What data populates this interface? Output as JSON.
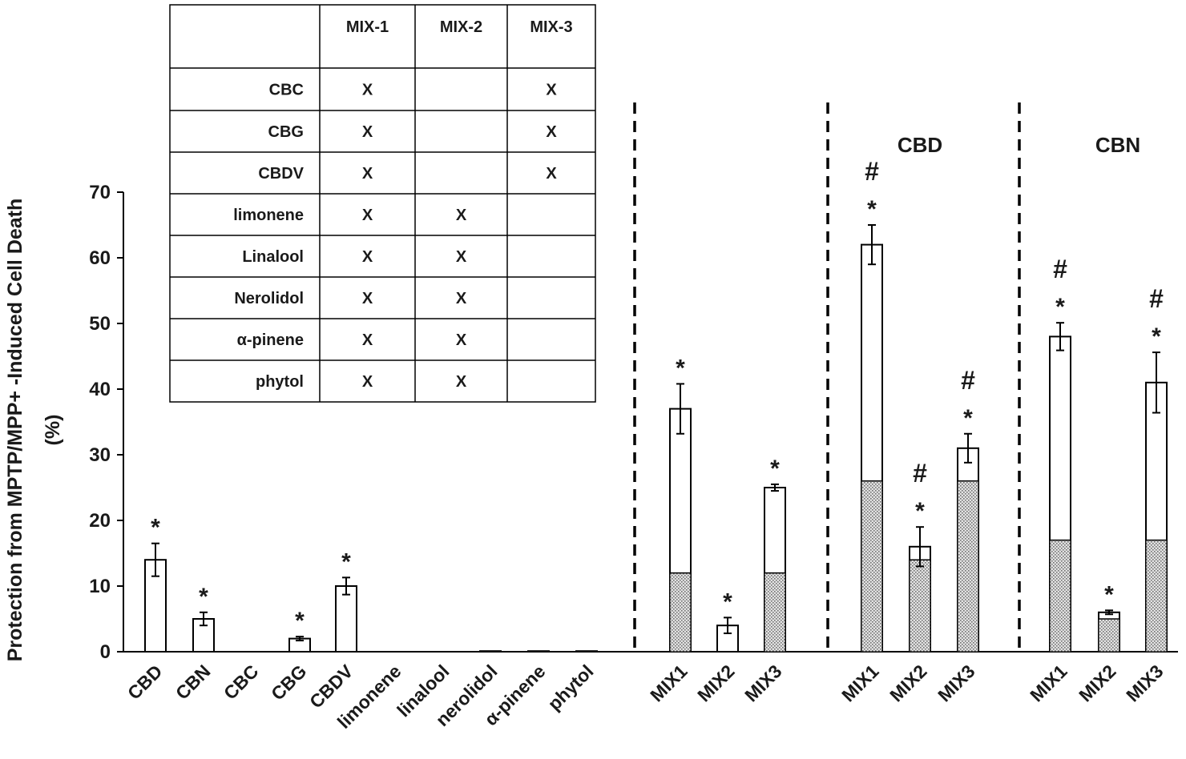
{
  "chart_data": {
    "type": "bar",
    "stacked": true,
    "ylabel": "Protection from MPTP/MPP+ -Induced Cell Death",
    "ylabel_unit": "(%)",
    "ylim": [
      0,
      70
    ],
    "yticks": [
      "0",
      "10",
      "20",
      "30",
      "40",
      "50",
      "60",
      "70"
    ],
    "categories": [
      "CBD",
      "CBN",
      "CBC",
      "CBG",
      "CBDV",
      "limonene",
      "linalool",
      "nerolidol",
      "α-pinene",
      "phytol",
      "MIX1",
      "MIX2",
      "MIX3",
      "MIX1",
      "MIX2",
      "MIX3",
      "MIX1",
      "MIX2",
      "MIX3"
    ],
    "series": [
      {
        "name": "base (hatched)",
        "values": [
          0,
          0,
          0,
          0,
          0,
          0,
          0,
          0,
          0,
          0,
          12,
          0,
          12,
          26,
          14,
          26,
          17,
          5,
          17
        ]
      },
      {
        "name": "total",
        "values": [
          14,
          5,
          0,
          2,
          10,
          0,
          0,
          0.1,
          0.1,
          0.1,
          37,
          4,
          25,
          62,
          16,
          31,
          48,
          6,
          41
        ]
      }
    ],
    "errors": [
      2.5,
      1,
      0,
      0.3,
      1.3,
      0,
      0,
      0,
      0,
      0,
      3.8,
      1.2,
      0.5,
      3,
      3,
      2.2,
      2.1,
      0.3,
      4.6
    ],
    "marks": [
      "*",
      "*",
      "",
      "*",
      "*",
      "",
      "",
      "",
      "",
      "",
      "*",
      "*",
      "*",
      "#*",
      "#*",
      "#*",
      "#*",
      "*",
      "#*"
    ],
    "group_labels": [
      "CBD",
      "CBN"
    ],
    "inset_table": {
      "columns": [
        "",
        "MIX-1",
        "MIX-2",
        "MIX-3"
      ],
      "rows": [
        [
          "CBC",
          "X",
          "",
          "X"
        ],
        [
          "CBG",
          "X",
          "",
          "X"
        ],
        [
          "CBDV",
          "X",
          "",
          "X"
        ],
        [
          "limonene",
          "X",
          "X",
          ""
        ],
        [
          "Linalool",
          "X",
          "X",
          ""
        ],
        [
          "Nerolidol",
          "X",
          "X",
          ""
        ],
        [
          "α-pinene",
          "X",
          "X",
          ""
        ],
        [
          "phytol",
          "X",
          "X",
          ""
        ]
      ]
    }
  }
}
